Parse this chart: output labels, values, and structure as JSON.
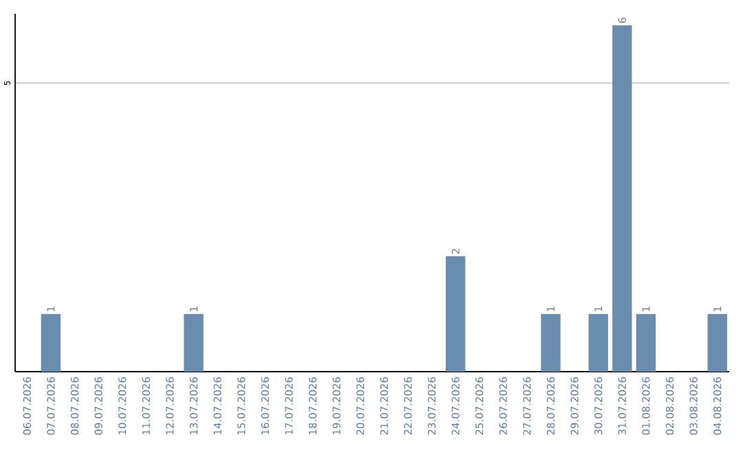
{
  "chart_data": {
    "type": "bar",
    "categories": [
      "06.07.2026",
      "07.07.2026",
      "08.07.2026",
      "09.07.2026",
      "10.07.2026",
      "11.07.2026",
      "12.07.2026",
      "13.07.2026",
      "14.07.2026",
      "15.07.2026",
      "16.07.2026",
      "17.07.2026",
      "18.07.2026",
      "19.07.2026",
      "20.07.2026",
      "21.07.2026",
      "22.07.2026",
      "23.07.2026",
      "24.07.2026",
      "25.07.2026",
      "26.07.2026",
      "27.07.2026",
      "28.07.2026",
      "29.07.2026",
      "30.07.2026",
      "31.07.2026",
      "01.08.2026",
      "02.08.2026",
      "03.08.2026",
      "04.08.2026"
    ],
    "values": [
      0,
      1,
      0,
      0,
      0,
      0,
      0,
      1,
      0,
      0,
      0,
      0,
      0,
      0,
      0,
      0,
      0,
      0,
      2,
      0,
      0,
      0,
      1,
      0,
      1,
      6,
      1,
      0,
      0,
      1
    ],
    "value_labels": [
      null,
      "1",
      null,
      null,
      null,
      null,
      null,
      "1",
      null,
      null,
      null,
      null,
      null,
      null,
      null,
      null,
      null,
      null,
      "2",
      null,
      null,
      null,
      "1",
      null,
      "1",
      "6",
      "1",
      null,
      null,
      "1"
    ],
    "color": "#6a8cad",
    "ylim": [
      0,
      6.2
    ],
    "yticks": [
      5
    ],
    "grid": "y"
  }
}
